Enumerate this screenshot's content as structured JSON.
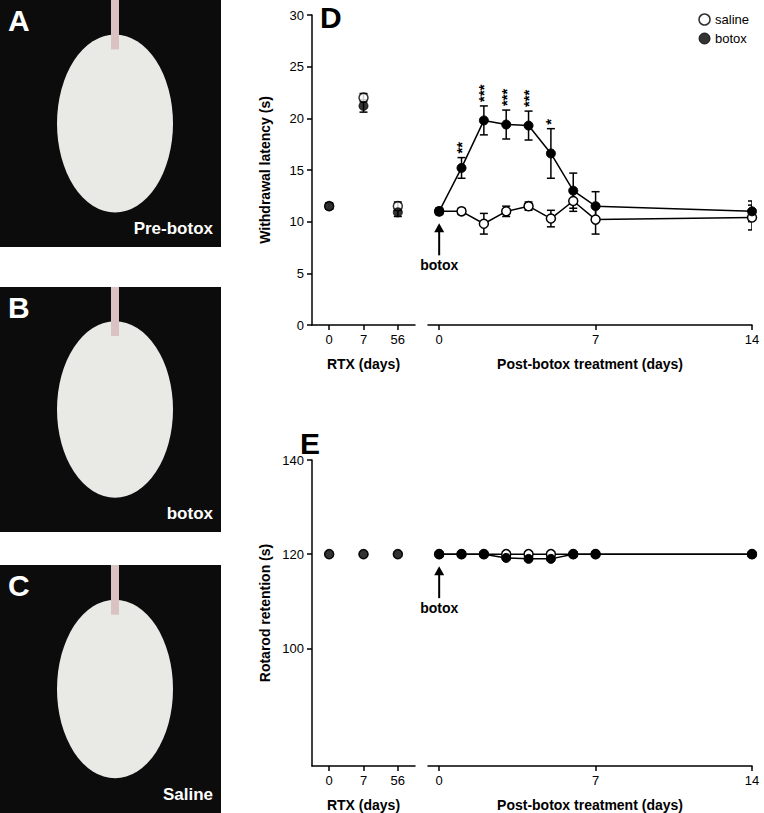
{
  "figure": {
    "panels": [
      {
        "label": "A",
        "caption": "Pre-botox"
      },
      {
        "label": "B",
        "caption": "botox"
      },
      {
        "label": "C",
        "caption": "Saline"
      }
    ]
  },
  "chart_data": [
    {
      "label": "D",
      "type": "line",
      "ylabel": "Withdrawal latency (s)",
      "ylim": [
        0,
        30
      ],
      "yticks": [
        0,
        5,
        10,
        15,
        20,
        25,
        30
      ],
      "legend": "upper right",
      "subplots": [
        {
          "type": "scatter",
          "xlabel": "RTX (days)",
          "categories": [
            0,
            7,
            56
          ],
          "series": [
            {
              "name": "saline",
              "color": "#000000",
              "marker": "open-circle",
              "values": [
                11.5,
                22.0,
                11.5
              ],
              "errors": [
                0.3,
                0.4,
                0.4
              ]
            },
            {
              "name": "botox",
              "color": "#000000",
              "marker": "circle",
              "values": [
                11.5,
                21.2,
                10.9
              ],
              "errors": [
                0.3,
                0.6,
                0.4
              ]
            }
          ]
        },
        {
          "type": "line",
          "xlabel": "Post-botox treatment (days)",
          "x": [
            0,
            1,
            2,
            3,
            4,
            5,
            6,
            7,
            14
          ],
          "xlim": [
            -0.5,
            14
          ],
          "xticks": [
            0,
            7,
            14
          ],
          "series": [
            {
              "name": "saline",
              "color": "#000000",
              "marker": "open-circle",
              "values": [
                11.0,
                11.0,
                9.8,
                11.0,
                11.5,
                10.3,
                12.0,
                10.2,
                10.4
              ],
              "errors": [
                0.3,
                0.3,
                1.0,
                0.5,
                0.4,
                0.8,
                1.0,
                1.4,
                1.2
              ]
            },
            {
              "name": "botox",
              "color": "#000000",
              "marker": "circle",
              "values": [
                11.0,
                15.2,
                19.8,
                19.4,
                19.3,
                16.6,
                13.0,
                11.5,
                11.0
              ],
              "errors": [
                0.3,
                1.0,
                1.4,
                1.4,
                1.4,
                2.4,
                1.7,
                1.4,
                1.0
              ]
            }
          ]
        }
      ],
      "annotations": [
        {
          "text": "botox",
          "x": 0
        }
      ],
      "significance": [
        {
          "x": 1,
          "text": "**",
          "series": "botox"
        },
        {
          "x": 2,
          "text": "***",
          "series": "botox"
        },
        {
          "x": 3,
          "text": "***",
          "series": "botox"
        },
        {
          "x": 4,
          "text": "***",
          "series": "botox"
        },
        {
          "x": 5,
          "text": "*",
          "series": "botox"
        }
      ]
    },
    {
      "label": "E",
      "type": "line",
      "ylabel": "Rotarod retention (s)",
      "ylim": [
        75,
        140
      ],
      "yticks": [
        100,
        120,
        140
      ],
      "subplots": [
        {
          "type": "scatter",
          "xlabel": "RTX (days)",
          "categories": [
            0,
            7,
            56
          ],
          "series": [
            {
              "name": "saline",
              "color": "#000000",
              "marker": "open-circle",
              "values": [
                120,
                120,
                120
              ]
            },
            {
              "name": "botox",
              "color": "#000000",
              "marker": "circle",
              "values": [
                120,
                120,
                120
              ]
            }
          ]
        },
        {
          "type": "line",
          "xlabel": "Post-botox treatment (days)",
          "x": [
            0,
            1,
            2,
            3,
            4,
            5,
            6,
            7,
            14
          ],
          "xlim": [
            -0.5,
            14
          ],
          "xticks": [
            0,
            7,
            14
          ],
          "series": [
            {
              "name": "saline",
              "color": "#000000",
              "marker": "open-circle",
              "values": [
                120,
                120,
                120,
                120,
                120,
                120,
                120,
                120,
                120
              ]
            },
            {
              "name": "botox",
              "color": "#000000",
              "marker": "circle",
              "values": [
                120,
                120,
                120,
                119.2,
                119,
                119,
                120,
                120,
                120
              ]
            }
          ]
        }
      ],
      "annotations": [
        {
          "text": "botox",
          "x": 0
        }
      ]
    }
  ]
}
